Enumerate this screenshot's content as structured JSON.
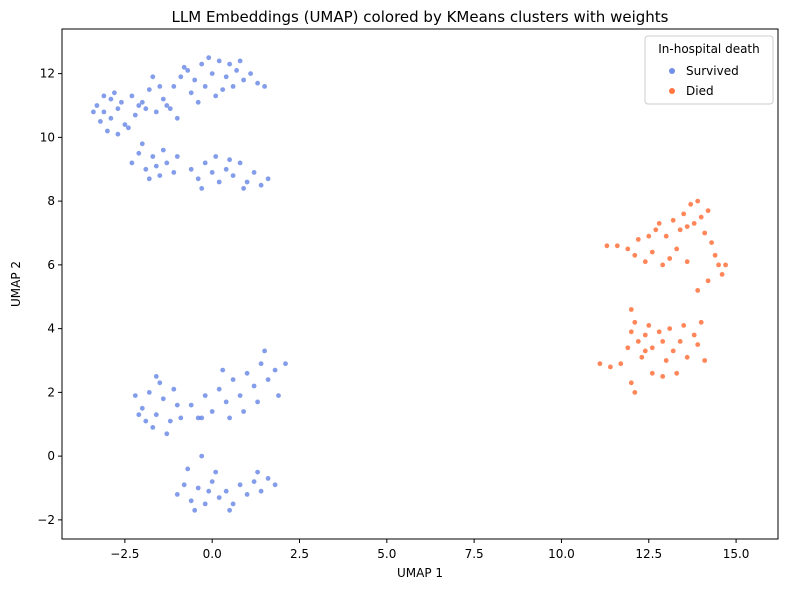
{
  "chart_data": {
    "type": "scatter",
    "title": "LLM Embeddings (UMAP) colored by KMeans clusters with weights",
    "xlabel": "UMAP 1",
    "ylabel": "UMAP 2",
    "xlim": [
      -4.3,
      16.2
    ],
    "ylim": [
      -2.6,
      13.4
    ],
    "grid": false,
    "x_ticks": [
      -2.5,
      0.0,
      2.5,
      5.0,
      7.5,
      10.0,
      12.5,
      15.0
    ],
    "x_tick_labels": [
      "−2.5",
      "0.0",
      "2.5",
      "5.0",
      "7.5",
      "10.0",
      "12.5",
      "15.0"
    ],
    "y_ticks": [
      -2,
      0,
      2,
      4,
      6,
      8,
      10,
      12
    ],
    "y_tick_labels": [
      "−2",
      "0",
      "2",
      "4",
      "6",
      "8",
      "10",
      "12"
    ],
    "legend": {
      "title": "In-hospital death",
      "placement": "top-right",
      "entries": [
        "Survived",
        "Died"
      ]
    },
    "series": [
      {
        "name": "Survived",
        "color": "#4169e1",
        "points": [
          [
            -3.3,
            11.0
          ],
          [
            -3.1,
            10.8
          ],
          [
            -2.9,
            10.6
          ],
          [
            -2.7,
            10.9
          ],
          [
            -2.5,
            10.4
          ],
          [
            -2.9,
            11.2
          ],
          [
            -3.2,
            10.5
          ],
          [
            -2.6,
            11.1
          ],
          [
            -2.2,
            10.7
          ],
          [
            -3.0,
            10.2
          ],
          [
            -2.4,
            10.3
          ],
          [
            -2.1,
            11.0
          ],
          [
            -3.4,
            10.8
          ],
          [
            -2.8,
            11.4
          ],
          [
            -2.3,
            11.3
          ],
          [
            -2.7,
            10.1
          ],
          [
            -1.9,
            10.9
          ],
          [
            -3.1,
            11.3
          ],
          [
            -2.0,
            11.1
          ],
          [
            -1.8,
            11.5
          ],
          [
            -1.4,
            11.2
          ],
          [
            -1.6,
            10.8
          ],
          [
            -1.2,
            10.9
          ],
          [
            -1.7,
            11.9
          ],
          [
            -1.5,
            11.6
          ],
          [
            -1.3,
            11.0
          ],
          [
            -1.0,
            10.6
          ],
          [
            -1.1,
            11.6
          ],
          [
            -0.9,
            11.9
          ],
          [
            -0.7,
            12.1
          ],
          [
            -0.5,
            11.8
          ],
          [
            -0.3,
            12.3
          ],
          [
            -0.2,
            11.6
          ],
          [
            0.0,
            12.0
          ],
          [
            0.2,
            12.4
          ],
          [
            0.4,
            11.9
          ],
          [
            0.5,
            12.3
          ],
          [
            0.7,
            12.1
          ],
          [
            0.9,
            11.8
          ],
          [
            1.1,
            12.0
          ],
          [
            1.3,
            11.7
          ],
          [
            -0.6,
            11.4
          ],
          [
            -0.1,
            12.5
          ],
          [
            0.3,
            11.5
          ],
          [
            0.8,
            12.4
          ],
          [
            1.5,
            11.6
          ],
          [
            -0.4,
            11.1
          ],
          [
            0.1,
            11.3
          ],
          [
            -0.8,
            12.2
          ],
          [
            0.6,
            11.6
          ],
          [
            -2.3,
            9.2
          ],
          [
            -2.1,
            9.5
          ],
          [
            -1.9,
            9.0
          ],
          [
            -1.7,
            9.4
          ],
          [
            -1.5,
            8.8
          ],
          [
            -1.3,
            9.2
          ],
          [
            -1.1,
            8.9
          ],
          [
            -1.8,
            8.7
          ],
          [
            -1.4,
            9.6
          ],
          [
            -2.0,
            9.8
          ],
          [
            -1.0,
            9.4
          ],
          [
            -1.6,
            9.1
          ],
          [
            -0.6,
            9.0
          ],
          [
            -0.4,
            8.7
          ],
          [
            -0.2,
            9.2
          ],
          [
            0.0,
            8.9
          ],
          [
            0.2,
            8.6
          ],
          [
            0.4,
            9.0
          ],
          [
            0.6,
            8.8
          ],
          [
            0.8,
            9.2
          ],
          [
            1.0,
            8.6
          ],
          [
            1.2,
            8.9
          ],
          [
            1.4,
            8.5
          ],
          [
            0.5,
            9.3
          ],
          [
            0.9,
            8.4
          ],
          [
            -0.3,
            8.4
          ],
          [
            0.1,
            9.4
          ],
          [
            1.6,
            8.7
          ],
          [
            -2.2,
            1.9
          ],
          [
            -2.0,
            1.5
          ],
          [
            -1.8,
            2.0
          ],
          [
            -1.6,
            1.3
          ],
          [
            -1.4,
            1.8
          ],
          [
            -1.2,
            1.1
          ],
          [
            -1.0,
            1.6
          ],
          [
            -1.7,
            0.9
          ],
          [
            -1.5,
            2.3
          ],
          [
            -1.9,
            1.1
          ],
          [
            -1.1,
            2.1
          ],
          [
            -1.3,
            0.7
          ],
          [
            -2.1,
            1.3
          ],
          [
            -0.9,
            1.2
          ],
          [
            -1.6,
            2.5
          ],
          [
            -0.6,
            1.6
          ],
          [
            -0.4,
            1.2
          ],
          [
            -0.2,
            1.9
          ],
          [
            0.0,
            1.4
          ],
          [
            0.2,
            2.1
          ],
          [
            0.4,
            1.7
          ],
          [
            0.6,
            2.4
          ],
          [
            0.8,
            1.9
          ],
          [
            1.0,
            2.6
          ],
          [
            1.2,
            2.2
          ],
          [
            1.4,
            2.9
          ],
          [
            1.6,
            2.4
          ],
          [
            1.8,
            2.7
          ],
          [
            0.5,
            1.2
          ],
          [
            0.9,
            1.4
          ],
          [
            1.3,
            1.7
          ],
          [
            1.5,
            3.3
          ],
          [
            1.9,
            1.9
          ],
          [
            2.1,
            2.9
          ],
          [
            0.3,
            2.7
          ],
          [
            -0.3,
            1.2
          ],
          [
            -1.0,
            -1.2
          ],
          [
            -0.8,
            -0.9
          ],
          [
            -0.6,
            -1.4
          ],
          [
            -0.4,
            -1.0
          ],
          [
            -0.2,
            -1.5
          ],
          [
            0.0,
            -0.8
          ],
          [
            0.2,
            -1.3
          ],
          [
            0.4,
            -1.1
          ],
          [
            0.6,
            -1.5
          ],
          [
            0.8,
            -0.9
          ],
          [
            1.0,
            -1.2
          ],
          [
            1.2,
            -0.8
          ],
          [
            1.4,
            -1.1
          ],
          [
            1.6,
            -0.7
          ],
          [
            -0.7,
            -0.4
          ],
          [
            0.1,
            -0.5
          ],
          [
            -0.3,
            0.0
          ],
          [
            1.8,
            -0.9
          ],
          [
            -0.5,
            -1.7
          ],
          [
            0.5,
            -1.7
          ],
          [
            1.3,
            -0.5
          ],
          [
            -0.1,
            -1.1
          ]
        ]
      },
      {
        "name": "Died",
        "color": "#ff4500",
        "points": [
          [
            11.3,
            6.6
          ],
          [
            11.6,
            6.6
          ],
          [
            11.9,
            6.5
          ],
          [
            12.2,
            6.8
          ],
          [
            12.1,
            6.3
          ],
          [
            12.4,
            6.1
          ],
          [
            12.6,
            6.4
          ],
          [
            12.5,
            6.9
          ],
          [
            12.8,
            7.3
          ],
          [
            12.9,
            6.0
          ],
          [
            13.1,
            6.2
          ],
          [
            13.2,
            7.4
          ],
          [
            13.4,
            7.1
          ],
          [
            13.5,
            7.6
          ],
          [
            13.7,
            7.9
          ],
          [
            13.8,
            7.3
          ],
          [
            13.9,
            8.0
          ],
          [
            14.0,
            7.5
          ],
          [
            14.1,
            7.0
          ],
          [
            14.2,
            7.7
          ],
          [
            14.3,
            6.7
          ],
          [
            14.4,
            6.3
          ],
          [
            14.5,
            6.0
          ],
          [
            14.6,
            5.7
          ],
          [
            14.7,
            6.0
          ],
          [
            13.6,
            6.1
          ],
          [
            13.3,
            6.5
          ],
          [
            13.0,
            6.9
          ],
          [
            14.2,
            5.5
          ],
          [
            13.9,
            5.2
          ],
          [
            12.7,
            7.1
          ],
          [
            13.6,
            7.2
          ],
          [
            11.1,
            2.9
          ],
          [
            11.4,
            2.8
          ],
          [
            11.7,
            2.9
          ],
          [
            11.9,
            3.4
          ],
          [
            12.0,
            3.9
          ],
          [
            12.1,
            4.2
          ],
          [
            12.2,
            3.6
          ],
          [
            12.3,
            3.1
          ],
          [
            12.4,
            3.8
          ],
          [
            12.5,
            4.1
          ],
          [
            12.6,
            3.4
          ],
          [
            12.8,
            3.9
          ],
          [
            12.9,
            3.6
          ],
          [
            13.1,
            4.0
          ],
          [
            13.2,
            3.3
          ],
          [
            13.4,
            3.6
          ],
          [
            13.6,
            3.1
          ],
          [
            13.8,
            3.8
          ],
          [
            13.9,
            3.5
          ],
          [
            14.0,
            4.2
          ],
          [
            14.1,
            3.0
          ],
          [
            12.0,
            2.3
          ],
          [
            12.1,
            2.0
          ],
          [
            12.6,
            2.6
          ],
          [
            12.9,
            2.5
          ],
          [
            13.3,
            2.6
          ],
          [
            12.0,
            4.6
          ],
          [
            12.4,
            3.3
          ],
          [
            13.5,
            4.1
          ],
          [
            13.0,
            3.0
          ]
        ]
      }
    ]
  }
}
